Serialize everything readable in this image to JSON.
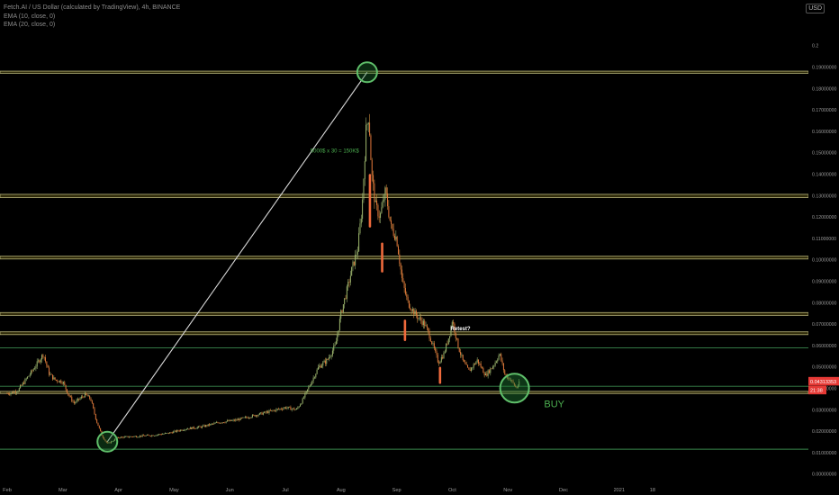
{
  "header": {
    "symbol_line": "Fetch.AI / US Dollar (calculated by TradingView), 4h, BINANCE",
    "ema1": "EMA (10, close, 0)",
    "ema2": "EMA (20, close, 0)",
    "currency": "USD"
  },
  "chart_data": {
    "type": "candlestick",
    "title": "Fetch.AI / US Dollar (calculated by TradingView), 4h, BINANCE",
    "y_tick_labels": [
      "0.2",
      "0.19000000",
      "0.18000000",
      "0.17000000",
      "0.16000000",
      "0.15000000",
      "0.14000000",
      "0.13000000",
      "0.12000000",
      "0.11000000",
      "0.10000000",
      "0.09000000",
      "0.08000000",
      "0.07000000",
      "0.06000000",
      "0.05000000",
      "0.04000000",
      "0.03000000",
      "0.02000000",
      "0.01000000",
      "0.00000000",
      "-0.01000000"
    ],
    "x_tick_labels": [
      "Feb",
      "Mar",
      "Apr",
      "May",
      "Jun",
      "Jul",
      "Aug",
      "Sep",
      "Oct",
      "Nov",
      "Dec",
      "2021",
      "18"
    ],
    "ylim": [
      -0.0115,
      0.2
    ],
    "current_price": "0.04313353",
    "countdown": "21:38",
    "price_path": [
      {
        "t": 0.0,
        "p": 0.0376
      },
      {
        "t": 0.1,
        "p": 0.038
      },
      {
        "t": 0.2,
        "p": 0.0392
      },
      {
        "t": 0.35,
        "p": 0.0445
      },
      {
        "t": 0.45,
        "p": 0.048
      },
      {
        "t": 0.55,
        "p": 0.052
      },
      {
        "t": 0.65,
        "p": 0.056
      },
      {
        "t": 0.75,
        "p": 0.047
      },
      {
        "t": 0.85,
        "p": 0.044
      },
      {
        "t": 1.0,
        "p": 0.043
      },
      {
        "t": 1.1,
        "p": 0.037
      },
      {
        "t": 1.2,
        "p": 0.033
      },
      {
        "t": 1.3,
        "p": 0.035
      },
      {
        "t": 1.4,
        "p": 0.037
      },
      {
        "t": 1.5,
        "p": 0.035
      },
      {
        "t": 1.6,
        "p": 0.025
      },
      {
        "t": 1.7,
        "p": 0.018
      },
      {
        "t": 1.8,
        "p": 0.014
      },
      {
        "t": 1.9,
        "p": 0.0155
      },
      {
        "t": 2.0,
        "p": 0.017
      },
      {
        "t": 2.3,
        "p": 0.0175
      },
      {
        "t": 2.6,
        "p": 0.018
      },
      {
        "t": 2.9,
        "p": 0.019
      },
      {
        "t": 3.2,
        "p": 0.021
      },
      {
        "t": 3.5,
        "p": 0.022
      },
      {
        "t": 3.8,
        "p": 0.024
      },
      {
        "t": 4.1,
        "p": 0.025
      },
      {
        "t": 4.4,
        "p": 0.027
      },
      {
        "t": 4.7,
        "p": 0.029
      },
      {
        "t": 5.0,
        "p": 0.031
      },
      {
        "t": 5.2,
        "p": 0.03
      },
      {
        "t": 5.3,
        "p": 0.034
      },
      {
        "t": 5.45,
        "p": 0.042
      },
      {
        "t": 5.6,
        "p": 0.05
      },
      {
        "t": 5.75,
        "p": 0.053
      },
      {
        "t": 5.9,
        "p": 0.06
      },
      {
        "t": 6.0,
        "p": 0.075
      },
      {
        "t": 6.1,
        "p": 0.085
      },
      {
        "t": 6.2,
        "p": 0.096
      },
      {
        "t": 6.3,
        "p": 0.105
      },
      {
        "t": 6.38,
        "p": 0.125
      },
      {
        "t": 6.45,
        "p": 0.16
      },
      {
        "t": 6.5,
        "p": 0.168
      },
      {
        "t": 6.55,
        "p": 0.14
      },
      {
        "t": 6.62,
        "p": 0.125
      },
      {
        "t": 6.7,
        "p": 0.12
      },
      {
        "t": 6.8,
        "p": 0.132
      },
      {
        "t": 6.9,
        "p": 0.115
      },
      {
        "t": 7.0,
        "p": 0.11
      },
      {
        "t": 7.1,
        "p": 0.09
      },
      {
        "t": 7.2,
        "p": 0.08
      },
      {
        "t": 7.35,
        "p": 0.074
      },
      {
        "t": 7.5,
        "p": 0.07
      },
      {
        "t": 7.6,
        "p": 0.064
      },
      {
        "t": 7.75,
        "p": 0.052
      },
      {
        "t": 7.85,
        "p": 0.056
      },
      {
        "t": 7.95,
        "p": 0.065
      },
      {
        "t": 8.0,
        "p": 0.072
      },
      {
        "t": 8.1,
        "p": 0.06
      },
      {
        "t": 8.2,
        "p": 0.052
      },
      {
        "t": 8.3,
        "p": 0.048
      },
      {
        "t": 8.45,
        "p": 0.053
      },
      {
        "t": 8.6,
        "p": 0.046
      },
      {
        "t": 8.75,
        "p": 0.051
      },
      {
        "t": 8.85,
        "p": 0.056
      },
      {
        "t": 8.95,
        "p": 0.046
      },
      {
        "t": 9.05,
        "p": 0.044
      },
      {
        "t": 9.15,
        "p": 0.04
      },
      {
        "t": 9.22,
        "p": 0.0431
      }
    ],
    "horizontal_levels": [
      {
        "type": "band",
        "low": 0.187,
        "high": 0.188
      },
      {
        "type": "band",
        "low": 0.129,
        "high": 0.1305
      },
      {
        "type": "band",
        "low": 0.1003,
        "high": 0.1016
      },
      {
        "type": "band",
        "low": 0.074,
        "high": 0.0753
      },
      {
        "type": "band",
        "low": 0.065,
        "high": 0.0663
      },
      {
        "type": "band",
        "low": 0.0375,
        "high": 0.0385
      },
      {
        "type": "line",
        "price": 0.0588
      },
      {
        "type": "line",
        "price": 0.0409
      },
      {
        "type": "line",
        "price": 0.0115
      }
    ],
    "trend_line": {
      "from": {
        "t": 1.8,
        "p": 0.015
      },
      "to": {
        "t": 6.47,
        "p": 0.1875
      }
    },
    "circles": [
      {
        "t": 1.8,
        "p": 0.015,
        "r": "small"
      },
      {
        "t": 6.47,
        "p": 0.1875,
        "r": "small"
      },
      {
        "t": 9.12,
        "p": 0.04,
        "r": "large"
      }
    ],
    "annotations": [
      {
        "text": "5000$ x 30 = 150K$",
        "t": 5.45,
        "p": 0.15
      },
      {
        "text": "Retest?",
        "t": 7.97,
        "p": 0.067
      },
      {
        "text": "BUY",
        "t": 9.65,
        "p": 0.031
      }
    ]
  }
}
